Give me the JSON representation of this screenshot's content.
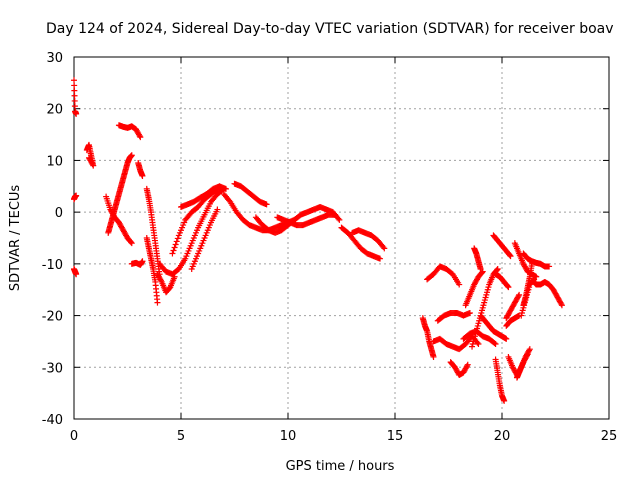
{
  "chart_data": {
    "type": "scatter",
    "title": "Day 124 of 2024, Sidereal Day-to-day VTEC variation (SDTVAR) for receiver boav",
    "xlabel": "GPS time / hours",
    "ylabel": "SDTVAR / TECUs",
    "xlim": [
      0,
      25
    ],
    "ylim": [
      -40,
      30
    ],
    "xticks": [
      "0",
      "5",
      "10",
      "15",
      "20",
      "25"
    ],
    "yticks": [
      "-40",
      "-30",
      "-20",
      "-10",
      "0",
      "10",
      "20",
      "30"
    ],
    "grid": true,
    "marker": "+",
    "color": "#ff0000",
    "series": [
      {
        "name": "seg-a",
        "x": [
          0.0,
          0.05,
          0.1
        ],
        "y": [
          25.5,
          19.5,
          19.0
        ]
      },
      {
        "name": "seg-b",
        "x": [
          0.0,
          0.05,
          0.1
        ],
        "y": [
          2.5,
          3.0,
          3.2
        ]
      },
      {
        "name": "seg-c",
        "x": [
          0.0,
          0.05,
          0.1
        ],
        "y": [
          -11.0,
          -11.5,
          -12.0
        ]
      },
      {
        "name": "seg-d",
        "x": [
          0.6,
          0.7,
          0.8,
          0.9,
          0.7
        ],
        "y": [
          12.0,
          13.0,
          11.0,
          9.0,
          10.5
        ]
      },
      {
        "name": "seg-e",
        "x": [
          1.5,
          1.7,
          1.9,
          2.1,
          2.3,
          2.5,
          2.7
        ],
        "y": [
          3.0,
          0.5,
          -1.0,
          -2.0,
          -3.5,
          -5.0,
          -6.0
        ]
      },
      {
        "name": "seg-f",
        "x": [
          1.6,
          1.7,
          1.8,
          1.9,
          2.0,
          2.1,
          2.2,
          2.3,
          2.4,
          2.5,
          2.6,
          2.7
        ],
        "y": [
          -4.0,
          -2.5,
          -1.0,
          0.5,
          2.0,
          3.5,
          5.0,
          6.5,
          8.0,
          9.5,
          10.5,
          11.0
        ]
      },
      {
        "name": "seg-g",
        "x": [
          2.1,
          2.3,
          2.5,
          2.7,
          2.9,
          3.1
        ],
        "y": [
          16.8,
          16.5,
          16.3,
          16.6,
          16.0,
          14.5
        ]
      },
      {
        "name": "seg-h",
        "x": [
          2.7,
          2.9,
          3.1,
          3.2
        ],
        "y": [
          -10.0,
          -9.8,
          -10.2,
          -9.5
        ]
      },
      {
        "name": "seg-i",
        "x": [
          3.0,
          3.1,
          3.2
        ],
        "y": [
          9.5,
          8.0,
          7.0
        ]
      },
      {
        "name": "seg-j",
        "x": [
          3.4,
          3.5,
          3.6,
          3.7,
          3.8,
          3.9,
          4.0
        ],
        "y": [
          4.5,
          2.5,
          0.0,
          -3.0,
          -6.0,
          -9.0,
          -12.0
        ]
      },
      {
        "name": "seg-k",
        "x": [
          3.4,
          3.5,
          3.6,
          3.7,
          3.8,
          3.9
        ],
        "y": [
          -5.0,
          -7.0,
          -9.0,
          -11.0,
          -13.5,
          -17.5
        ]
      },
      {
        "name": "seg-l",
        "x": [
          3.9,
          4.1,
          4.3,
          4.5,
          4.7
        ],
        "y": [
          -12.0,
          -13.5,
          -15.5,
          -14.5,
          -12.5
        ]
      },
      {
        "name": "seg-m",
        "x": [
          4.0,
          4.3,
          4.6,
          4.9,
          5.2,
          5.5,
          5.8,
          6.1,
          6.4,
          6.7,
          7.0
        ],
        "y": [
          -10.0,
          -11.5,
          -12.0,
          -11.0,
          -9.0,
          -6.0,
          -3.0,
          -0.5,
          2.0,
          3.5,
          4.5
        ]
      },
      {
        "name": "seg-n",
        "x": [
          4.6,
          4.9,
          5.2,
          5.5,
          5.8,
          6.1,
          6.4,
          6.7
        ],
        "y": [
          -8.0,
          -4.5,
          -1.5,
          0.0,
          1.0,
          2.5,
          3.5,
          4.5
        ]
      },
      {
        "name": "seg-o",
        "x": [
          5.0,
          5.3,
          5.6,
          5.9,
          6.2,
          6.5,
          6.8,
          7.1
        ],
        "y": [
          1.0,
          1.5,
          2.0,
          2.8,
          3.5,
          4.5,
          5.0,
          4.5
        ]
      },
      {
        "name": "seg-p",
        "x": [
          5.5,
          5.8,
          6.1,
          6.4,
          6.7
        ],
        "y": [
          -11.0,
          -8.0,
          -5.0,
          -2.0,
          0.5
        ]
      },
      {
        "name": "seg-q",
        "x": [
          7.0,
          7.3,
          7.6,
          7.9,
          8.2,
          8.5,
          8.8,
          9.1,
          9.4,
          9.7,
          10.0,
          10.3
        ],
        "y": [
          3.5,
          2.0,
          0.0,
          -1.5,
          -2.5,
          -3.0,
          -3.5,
          -3.5,
          -3.0,
          -2.5,
          -2.0,
          -1.5
        ]
      },
      {
        "name": "seg-r",
        "x": [
          7.5,
          7.8,
          8.1,
          8.4,
          8.7,
          9.0
        ],
        "y": [
          5.5,
          5.0,
          4.0,
          3.0,
          2.0,
          1.5
        ]
      },
      {
        "name": "seg-s",
        "x": [
          8.5,
          8.8,
          9.1,
          9.4,
          9.7,
          10.0,
          10.3,
          10.6,
          10.9,
          11.2,
          11.5,
          11.8,
          12.1,
          12.4
        ],
        "y": [
          -1.0,
          -2.5,
          -3.5,
          -4.0,
          -3.5,
          -2.5,
          -1.5,
          -0.5,
          0.0,
          0.5,
          1.0,
          0.5,
          0.0,
          -1.5
        ]
      },
      {
        "name": "seg-t",
        "x": [
          9.5,
          9.8,
          10.1,
          10.4,
          10.7,
          11.0,
          11.3,
          11.6,
          11.9,
          12.2
        ],
        "y": [
          -1.0,
          -1.5,
          -2.0,
          -2.5,
          -2.5,
          -2.0,
          -1.5,
          -1.0,
          -0.5,
          -0.5
        ]
      },
      {
        "name": "seg-u",
        "x": [
          12.5,
          12.8,
          13.1,
          13.4,
          13.7,
          14.0,
          14.3
        ],
        "y": [
          -3.0,
          -4.0,
          -5.5,
          -7.0,
          -8.0,
          -8.5,
          -9.0
        ]
      },
      {
        "name": "seg-v",
        "x": [
          13.0,
          13.3,
          13.6,
          13.9,
          14.2,
          14.5
        ],
        "y": [
          -4.0,
          -3.5,
          -4.0,
          -4.5,
          -5.5,
          -7.0
        ]
      },
      {
        "name": "seg-w",
        "x": [
          16.3,
          16.4,
          16.5,
          16.6,
          16.7,
          16.8
        ],
        "y": [
          -20.5,
          -22.0,
          -23.0,
          -25.0,
          -26.5,
          -28.0
        ]
      },
      {
        "name": "seg-x",
        "x": [
          16.5,
          16.8,
          17.1,
          17.4,
          17.7,
          18.0
        ],
        "y": [
          -13.0,
          -12.0,
          -10.5,
          -11.0,
          -12.0,
          -14.0
        ]
      },
      {
        "name": "seg-y",
        "x": [
          16.8,
          17.1,
          17.4,
          17.7,
          18.0,
          18.3,
          18.6,
          18.9
        ],
        "y": [
          -25.0,
          -24.5,
          -25.5,
          -26.0,
          -26.5,
          -25.5,
          -24.0,
          -25.5
        ]
      },
      {
        "name": "seg-z",
        "x": [
          17.0,
          17.3,
          17.6,
          17.9,
          18.2,
          18.5
        ],
        "y": [
          -21.0,
          -20.0,
          -19.5,
          -19.5,
          -20.0,
          -19.5
        ]
      },
      {
        "name": "seg-aa",
        "x": [
          17.6,
          17.8,
          18.0,
          18.2,
          18.4
        ],
        "y": [
          -29.0,
          -30.0,
          -31.5,
          -31.0,
          -29.5
        ]
      },
      {
        "name": "seg-ab",
        "x": [
          18.2,
          18.5,
          18.8,
          19.1,
          19.4,
          19.7
        ],
        "y": [
          -24.5,
          -23.5,
          -23.0,
          -24.0,
          -24.5,
          -25.5
        ]
      },
      {
        "name": "seg-ac",
        "x": [
          18.3,
          18.5,
          18.7,
          18.9,
          19.1
        ],
        "y": [
          -18.0,
          -16.0,
          -14.0,
          -12.5,
          -11.5
        ]
      },
      {
        "name": "seg-ad",
        "x": [
          18.6,
          18.8,
          19.0,
          19.2,
          19.4,
          19.6,
          19.8
        ],
        "y": [
          -26.0,
          -23.0,
          -20.0,
          -17.0,
          -14.0,
          -12.0,
          -11.0
        ]
      },
      {
        "name": "seg-ae",
        "x": [
          18.7,
          18.8,
          18.9,
          19.0
        ],
        "y": [
          -7.0,
          -8.0,
          -9.5,
          -11.0
        ]
      },
      {
        "name": "seg-af",
        "x": [
          19.0,
          19.2,
          19.4,
          19.6,
          19.8,
          20.0,
          20.2
        ],
        "y": [
          -20.0,
          -21.0,
          -22.0,
          -23.0,
          -23.5,
          -24.0,
          -24.5
        ]
      },
      {
        "name": "seg-ag",
        "x": [
          19.7,
          19.9,
          20.1,
          20.3
        ],
        "y": [
          -12.0,
          -12.5,
          -13.5,
          -14.5
        ]
      },
      {
        "name": "seg-ah",
        "x": [
          19.6,
          19.8,
          20.0,
          20.2,
          20.4
        ],
        "y": [
          -4.5,
          -5.5,
          -6.5,
          -7.5,
          -8.5
        ]
      },
      {
        "name": "seg-ai",
        "x": [
          19.7,
          19.8,
          19.9,
          20.0,
          20.1
        ],
        "y": [
          -28.5,
          -31.0,
          -33.5,
          -35.5,
          -36.5
        ]
      },
      {
        "name": "seg-aj",
        "x": [
          20.2,
          20.4,
          20.6,
          20.8
        ],
        "y": [
          -22.0,
          -21.0,
          -20.5,
          -20.0
        ]
      },
      {
        "name": "seg-ak",
        "x": [
          20.3,
          20.5,
          20.7,
          20.9,
          21.1,
          21.3
        ],
        "y": [
          -28.0,
          -30.0,
          -31.5,
          -30.0,
          -28.0,
          -26.5
        ]
      },
      {
        "name": "seg-al",
        "x": [
          20.6,
          20.8,
          21.0,
          21.2,
          21.4,
          21.6
        ],
        "y": [
          -6.0,
          -8.0,
          -10.0,
          -11.5,
          -12.0,
          -12.5
        ]
      },
      {
        "name": "seg-am",
        "x": [
          20.9,
          21.1,
          21.3,
          21.5
        ],
        "y": [
          -20.0,
          -17.0,
          -14.0,
          -13.0
        ]
      },
      {
        "name": "seg-an",
        "x": [
          21.0,
          21.2,
          21.4,
          21.6,
          21.8,
          22.0,
          22.2
        ],
        "y": [
          -8.0,
          -9.0,
          -9.5,
          -9.8,
          -10.0,
          -10.5,
          -10.5
        ]
      },
      {
        "name": "seg-ao",
        "x": [
          21.5,
          21.6,
          21.8,
          22.0,
          22.2,
          22.4,
          22.6,
          22.8
        ],
        "y": [
          -13.5,
          -14.0,
          -14.0,
          -13.5,
          -14.0,
          -15.0,
          -16.5,
          -18.0
        ]
      },
      {
        "name": "seg-ap",
        "x": [
          21.4,
          21.3,
          21.2,
          21.1,
          21.0
        ],
        "y": [
          -10.0,
          -12.5,
          -14.5,
          -16.5,
          -18.0
        ]
      },
      {
        "name": "seg-aq",
        "x": [
          20.8,
          20.6,
          20.4,
          20.2
        ],
        "y": [
          -16.0,
          -17.5,
          -19.0,
          -20.5
        ]
      },
      {
        "name": "seg-ar",
        "x": [
          20.7,
          20.8,
          20.9,
          21.0,
          21.2
        ],
        "y": [
          -32.0,
          -31.0,
          -30.0,
          -29.0,
          -27.5
        ]
      }
    ]
  }
}
